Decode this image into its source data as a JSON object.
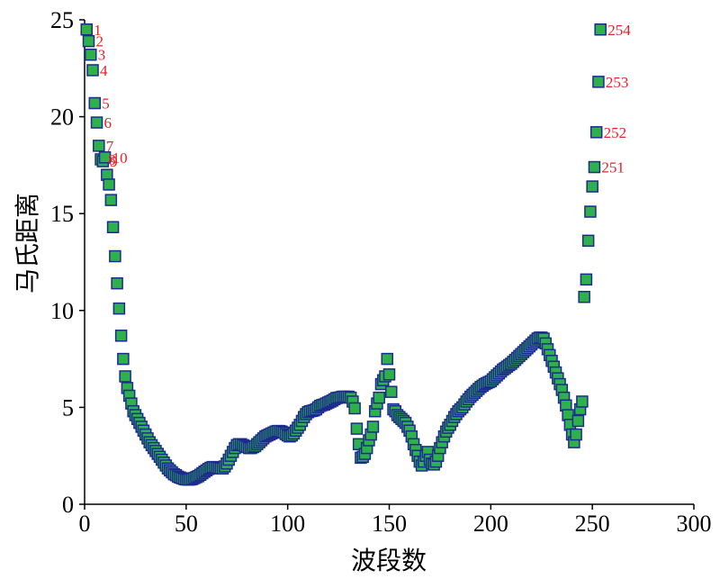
{
  "chart_data": {
    "type": "scatter",
    "xlabel": "波段数",
    "ylabel": "马氏距离",
    "xlim": [
      0,
      300
    ],
    "ylim": [
      0,
      25
    ],
    "xticks": [
      0,
      50,
      100,
      150,
      200,
      250,
      300
    ],
    "yticks": [
      0,
      5,
      10,
      15,
      20,
      25
    ],
    "grid": false,
    "colors": {
      "marker_fill": "#2eb14b",
      "marker_edge": "#1c2b8f",
      "label": "#e8202a"
    },
    "points": [
      [
        1,
        24.5
      ],
      [
        2,
        23.9
      ],
      [
        3,
        23.2
      ],
      [
        4,
        22.4
      ],
      [
        5,
        20.7
      ],
      [
        6,
        19.7
      ],
      [
        7,
        18.5
      ],
      [
        8,
        17.8
      ],
      [
        9,
        17.7
      ],
      [
        10,
        17.9
      ],
      [
        11,
        17.0
      ],
      [
        12,
        16.5
      ],
      [
        13,
        15.7
      ],
      [
        14,
        14.3
      ],
      [
        15,
        12.8
      ],
      [
        16,
        11.4
      ],
      [
        17,
        10.1
      ],
      [
        18,
        8.7
      ],
      [
        19,
        7.5
      ],
      [
        20,
        6.6
      ],
      [
        21,
        6.0
      ],
      [
        22,
        5.6
      ],
      [
        23,
        5.2
      ],
      [
        24,
        4.8
      ],
      [
        25,
        4.6
      ],
      [
        26,
        4.4
      ],
      [
        27,
        4.2
      ],
      [
        28,
        4.0
      ],
      [
        29,
        3.8
      ],
      [
        30,
        3.6
      ],
      [
        31,
        3.4
      ],
      [
        32,
        3.2
      ],
      [
        33,
        3.05
      ],
      [
        34,
        2.9
      ],
      [
        35,
        2.75
      ],
      [
        36,
        2.6
      ],
      [
        37,
        2.45
      ],
      [
        38,
        2.3
      ],
      [
        39,
        2.15
      ],
      [
        40,
        2.0
      ],
      [
        41,
        1.85
      ],
      [
        42,
        1.75
      ],
      [
        43,
        1.65
      ],
      [
        44,
        1.55
      ],
      [
        45,
        1.5
      ],
      [
        46,
        1.42
      ],
      [
        47,
        1.38
      ],
      [
        48,
        1.34
      ],
      [
        49,
        1.3
      ],
      [
        50,
        1.28
      ],
      [
        51,
        1.27
      ],
      [
        52,
        1.28
      ],
      [
        53,
        1.3
      ],
      [
        54,
        1.35
      ],
      [
        55,
        1.4
      ],
      [
        56,
        1.45
      ],
      [
        57,
        1.52
      ],
      [
        58,
        1.6
      ],
      [
        59,
        1.68
      ],
      [
        60,
        1.75
      ],
      [
        61,
        1.82
      ],
      [
        62,
        1.88
      ],
      [
        63,
        1.92
      ],
      [
        64,
        1.92
      ],
      [
        65,
        1.9
      ],
      [
        66,
        1.88
      ],
      [
        67,
        1.85
      ],
      [
        68,
        1.85
      ],
      [
        69,
        1.95
      ],
      [
        70,
        2.1
      ],
      [
        71,
        2.3
      ],
      [
        72,
        2.5
      ],
      [
        73,
        2.7
      ],
      [
        74,
        2.9
      ],
      [
        75,
        3.05
      ],
      [
        76,
        3.1
      ],
      [
        77,
        3.1
      ],
      [
        78,
        3.05
      ],
      [
        79,
        3.0
      ],
      [
        80,
        2.95
      ],
      [
        81,
        2.9
      ],
      [
        82,
        2.9
      ],
      [
        83,
        2.95
      ],
      [
        84,
        3.0
      ],
      [
        85,
        3.1
      ],
      [
        86,
        3.2
      ],
      [
        87,
        3.3
      ],
      [
        88,
        3.4
      ],
      [
        89,
        3.5
      ],
      [
        90,
        3.55
      ],
      [
        91,
        3.6
      ],
      [
        92,
        3.65
      ],
      [
        93,
        3.7
      ],
      [
        94,
        3.75
      ],
      [
        95,
        3.78
      ],
      [
        96,
        3.78
      ],
      [
        97,
        3.75
      ],
      [
        98,
        3.7
      ],
      [
        99,
        3.62
      ],
      [
        100,
        3.55
      ],
      [
        101,
        3.5
      ],
      [
        102,
        3.55
      ],
      [
        103,
        3.65
      ],
      [
        104,
        3.8
      ],
      [
        105,
        3.95
      ],
      [
        106,
        4.1
      ],
      [
        107,
        4.3
      ],
      [
        108,
        4.5
      ],
      [
        109,
        4.65
      ],
      [
        110,
        4.75
      ],
      [
        111,
        4.8
      ],
      [
        112,
        4.82
      ],
      [
        113,
        4.85
      ],
      [
        114,
        4.9
      ],
      [
        115,
        5.0
      ],
      [
        116,
        5.08
      ],
      [
        117,
        5.12
      ],
      [
        118,
        5.15
      ],
      [
        119,
        5.2
      ],
      [
        120,
        5.25
      ],
      [
        121,
        5.3
      ],
      [
        122,
        5.35
      ],
      [
        123,
        5.42
      ],
      [
        124,
        5.48
      ],
      [
        125,
        5.5
      ],
      [
        126,
        5.52
      ],
      [
        127,
        5.55
      ],
      [
        128,
        5.55
      ],
      [
        129,
        5.55
      ],
      [
        130,
        5.55
      ],
      [
        131,
        5.5
      ],
      [
        132,
        5.3
      ],
      [
        133,
        4.95
      ],
      [
        134,
        3.9
      ],
      [
        135,
        3.1
      ],
      [
        136,
        2.4
      ],
      [
        137,
        2.45
      ],
      [
        138,
        2.6
      ],
      [
        139,
        2.9
      ],
      [
        140,
        3.3
      ],
      [
        141,
        3.6
      ],
      [
        142,
        4.0
      ],
      [
        143,
        4.8
      ],
      [
        144,
        5.2
      ],
      [
        145,
        5.5
      ],
      [
        146,
        6.2
      ],
      [
        147,
        6.4
      ],
      [
        148,
        6.6
      ],
      [
        149,
        7.5
      ],
      [
        150,
        6.7
      ],
      [
        151,
        5.8
      ],
      [
        152,
        4.9
      ],
      [
        153,
        4.8
      ],
      [
        154,
        4.6
      ],
      [
        155,
        4.5
      ],
      [
        156,
        4.4
      ],
      [
        157,
        4.3
      ],
      [
        158,
        4.2
      ],
      [
        159,
        4.0
      ],
      [
        160,
        3.8
      ],
      [
        161,
        3.5
      ],
      [
        162,
        3.1
      ],
      [
        163,
        2.8
      ],
      [
        164,
        2.5
      ],
      [
        165,
        2.2
      ],
      [
        166,
        2.0
      ],
      [
        167,
        2.2
      ],
      [
        168,
        2.5
      ],
      [
        169,
        2.7
      ],
      [
        170,
        2.3
      ],
      [
        171,
        2.1
      ],
      [
        172,
        2.05
      ],
      [
        173,
        2.2
      ],
      [
        174,
        2.5
      ],
      [
        175,
        2.9
      ],
      [
        176,
        3.2
      ],
      [
        177,
        3.5
      ],
      [
        178,
        3.75
      ],
      [
        179,
        3.95
      ],
      [
        180,
        4.1
      ],
      [
        181,
        4.3
      ],
      [
        182,
        4.5
      ],
      [
        183,
        4.65
      ],
      [
        184,
        4.8
      ],
      [
        185,
        4.9
      ],
      [
        186,
        5.0
      ],
      [
        187,
        5.15
      ],
      [
        188,
        5.3
      ],
      [
        189,
        5.42
      ],
      [
        190,
        5.55
      ],
      [
        191,
        5.65
      ],
      [
        192,
        5.75
      ],
      [
        193,
        5.85
      ],
      [
        194,
        5.95
      ],
      [
        195,
        6.05
      ],
      [
        196,
        6.12
      ],
      [
        197,
        6.2
      ],
      [
        198,
        6.25
      ],
      [
        199,
        6.3
      ],
      [
        200,
        6.35
      ],
      [
        201,
        6.45
      ],
      [
        202,
        6.55
      ],
      [
        203,
        6.65
      ],
      [
        204,
        6.75
      ],
      [
        205,
        6.85
      ],
      [
        206,
        6.95
      ],
      [
        207,
        7.02
      ],
      [
        208,
        7.1
      ],
      [
        209,
        7.18
      ],
      [
        210,
        7.25
      ],
      [
        211,
        7.35
      ],
      [
        212,
        7.45
      ],
      [
        213,
        7.55
      ],
      [
        214,
        7.65
      ],
      [
        215,
        7.75
      ],
      [
        216,
        7.85
      ],
      [
        217,
        7.95
      ],
      [
        218,
        8.05
      ],
      [
        219,
        8.15
      ],
      [
        220,
        8.25
      ],
      [
        221,
        8.35
      ],
      [
        222,
        8.45
      ],
      [
        223,
        8.55
      ],
      [
        224,
        8.6
      ],
      [
        225,
        8.6
      ],
      [
        226,
        8.55
      ],
      [
        227,
        8.3
      ],
      [
        228,
        8.0
      ],
      [
        229,
        7.7
      ],
      [
        230,
        7.4
      ],
      [
        231,
        7.1
      ],
      [
        232,
        6.8
      ],
      [
        233,
        6.5
      ],
      [
        234,
        6.2
      ],
      [
        235,
        5.9
      ],
      [
        236,
        5.5
      ],
      [
        237,
        5.1
      ],
      [
        238,
        4.6
      ],
      [
        239,
        4.1
      ],
      [
        240,
        3.6
      ],
      [
        241,
        3.2
      ],
      [
        242,
        3.6
      ],
      [
        243,
        4.3
      ],
      [
        244,
        4.9
      ],
      [
        245,
        5.3
      ],
      [
        246,
        10.7
      ],
      [
        247,
        11.6
      ],
      [
        248,
        13.6
      ],
      [
        249,
        15.1
      ],
      [
        250,
        16.4
      ],
      [
        251,
        17.4
      ],
      [
        252,
        19.2
      ],
      [
        253,
        21.8
      ],
      [
        254,
        24.5
      ]
    ],
    "annotations": [
      {
        "x": 1,
        "y": 24.5,
        "text": "1"
      },
      {
        "x": 2,
        "y": 23.9,
        "text": "2"
      },
      {
        "x": 3,
        "y": 23.2,
        "text": "3"
      },
      {
        "x": 4,
        "y": 22.4,
        "text": "4"
      },
      {
        "x": 5,
        "y": 20.7,
        "text": "5"
      },
      {
        "x": 6,
        "y": 19.7,
        "text": "6"
      },
      {
        "x": 7,
        "y": 18.5,
        "text": "7"
      },
      {
        "x": 8,
        "y": 17.8,
        "text": "8"
      },
      {
        "x": 9,
        "y": 17.7,
        "text": "9"
      },
      {
        "x": 10,
        "y": 17.9,
        "text": "10"
      },
      {
        "x": 251,
        "y": 17.4,
        "text": "251"
      },
      {
        "x": 252,
        "y": 19.2,
        "text": "252"
      },
      {
        "x": 253,
        "y": 21.8,
        "text": "253"
      },
      {
        "x": 254,
        "y": 24.5,
        "text": "254"
      }
    ]
  }
}
